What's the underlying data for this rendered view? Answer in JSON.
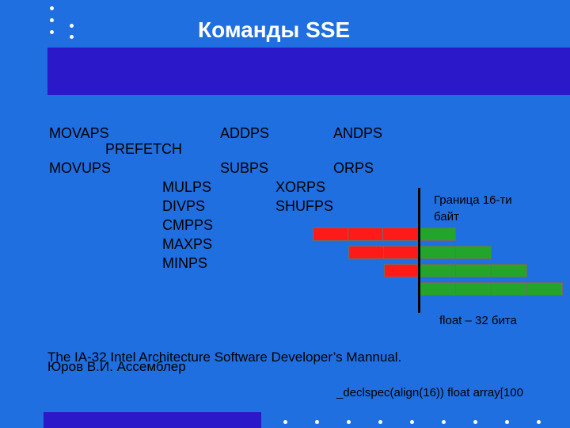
{
  "slide": {
    "title": "Команды SSE",
    "colors": {
      "background": "#1f6fe0",
      "band": "#2b18c9",
      "red": "#ff1a1a",
      "green": "#22a52a"
    }
  },
  "commands": {
    "movaps": "MOVAPS",
    "prefetch": "PREFETCH",
    "movups": "MOVUPS",
    "addps": "ADDPS",
    "subps": "SUBPS",
    "andps": "ANDPS",
    "orps": "ORPS",
    "mulps": "MULPS",
    "divps": "DIVPS",
    "cmpps": "CMPPS",
    "maxps": "MAXPS",
    "minps": "MINPS",
    "xorps": "XORPS",
    "shufps": "SHUFPS"
  },
  "diagram": {
    "boundary_line1": "Граница 16-ти",
    "boundary_line2": "байт",
    "float_label": "float – 32 бита"
  },
  "references": {
    "manual": "The IA-32 Intel Architecture Software Developer’s Mannual.",
    "author": "Юров В.И. Ассемблер"
  },
  "code": {
    "declspec": "_declspec(align(16)) float array[100"
  }
}
